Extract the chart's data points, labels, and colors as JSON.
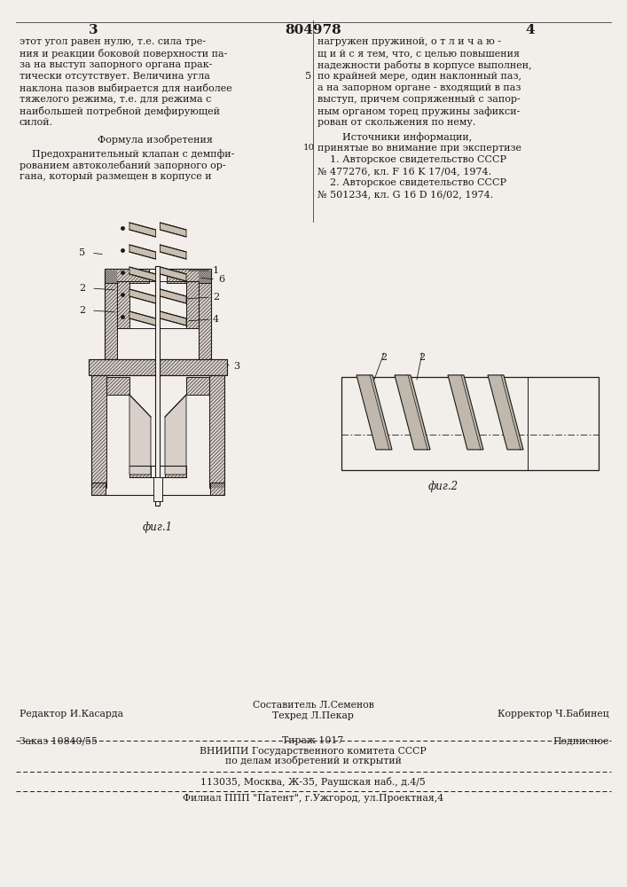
{
  "page_color": "#f2efea",
  "title_top_left": "3",
  "title_center": "804978",
  "title_top_right": "4",
  "left_text": [
    "этот угол равен нулю, т.е. сила тре-",
    "ния и реакции боковой поверхности па-",
    "за на выступ запорного органа прак-",
    "тически отсутствует. Величина угла",
    "наклона пазов выбирается для наиболее",
    "тяжелого режима, т.е. для режима с",
    "наибольшей потребной демфирующей",
    "силой."
  ],
  "formula_title": "Формула изобретения",
  "formula_text": [
    "    Предохранительный клапан с демпфи-",
    "рованием автоколебаний запорного ор-",
    "гана, который размещен в корпусе и"
  ],
  "right_text_1": [
    "нагружен пружиной, о т л и ч а ю -",
    "щ и й с я тем, что, с целью повышения",
    "надежности работы в корпусе выполнен,",
    "по крайней мере, один наклонный паз,",
    "а на запорном органе - входящий в паз",
    "выступ, причем сопряженный с запор-",
    "ным органом торец пружины зафикси-",
    "рован от скольжения по нему."
  ],
  "sources_title": "        Источники информации,",
  "sources_text": [
    "принятые во внимание при экспертизе",
    "    1. Авторское свидетельство СССР",
    "№ 477276, кл. F 16 K 17/04, 1974.",
    "    2. Авторское свидетельство СССР",
    "№ 501234, кл. G 16 D 16/02, 1974."
  ],
  "fig1_caption": "фиг.1",
  "fig2_caption": "фиг.2",
  "label5": "5",
  "label6": "6",
  "label1": "1",
  "label2a": "2",
  "label2b": "2",
  "label2c": "2",
  "label4": "4",
  "label3": "3",
  "label2_fig2a": "2",
  "label2_fig2b": "2",
  "footer_editor": "Редактор И.Касарда",
  "footer_comp1": "Составитель Л.Семенов",
  "footer_tech": "Техред Л.Пекар",
  "footer_corr": "Корректор Ч.Бабинец",
  "footer_order": "Заказ 10840/55",
  "footer_circ": "Тираж 1017",
  "footer_sub": "Подписное",
  "footer_org1": "ВНИИПИ Государственного комитета СССР",
  "footer_org2": "по делам изобретений и открытий",
  "footer_org3": "113035, Москва, Ж-35, Раушская наб., д.4/5",
  "footer_branch": "Филиал ППП \"Патент\", г.Ужгород, ул.Проектная,4",
  "hatch_color": "#b0a898",
  "line_color": "#1a1a1a",
  "text_color": "#1a1a1a"
}
